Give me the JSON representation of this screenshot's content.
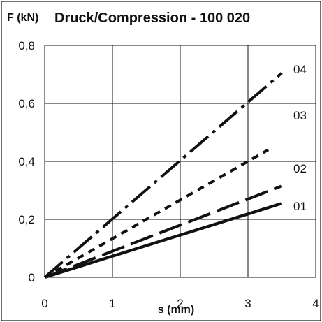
{
  "chart_data": {
    "type": "line",
    "title": "Druck/Compression - 100 020",
    "ylabel": "F (kN)",
    "xlabel": "s (mm)",
    "xlim": [
      0,
      4
    ],
    "ylim": [
      0,
      0.8
    ],
    "x_ticks": [
      "0",
      "1",
      "2",
      "3",
      "4"
    ],
    "y_ticks": [
      "0",
      "0,2",
      "0,4",
      "0,6",
      "0,8"
    ],
    "grid": true,
    "series": [
      {
        "name": "01",
        "points": [
          [
            0,
            0
          ],
          [
            3.5,
            0.255
          ]
        ],
        "line_style": "solid"
      },
      {
        "name": "02",
        "points": [
          [
            0,
            0
          ],
          [
            3.5,
            0.315
          ]
        ],
        "line_style": "long-dash"
      },
      {
        "name": "03",
        "points": [
          [
            0,
            0
          ],
          [
            3.3,
            0.44
          ]
        ],
        "line_style": "short-dash"
      },
      {
        "name": "04",
        "points": [
          [
            0,
            0
          ],
          [
            3.5,
            0.705
          ]
        ],
        "line_style": "dash-dot"
      }
    ]
  }
}
